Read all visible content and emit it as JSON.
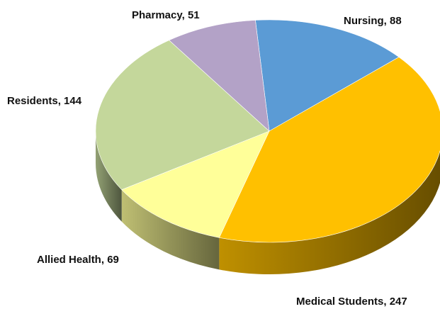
{
  "chart_data": {
    "type": "pie",
    "categories": [
      "Nursing",
      "Medical Students",
      "Allied Health",
      "Residents",
      "Pharmacy"
    ],
    "values": [
      88,
      247,
      69,
      144,
      51
    ],
    "colors": [
      "#5b9bd5",
      "#ffc000",
      "#ffff99",
      "#c4d79b",
      "#b3a2c7"
    ],
    "label_separator": ",  "
  }
}
